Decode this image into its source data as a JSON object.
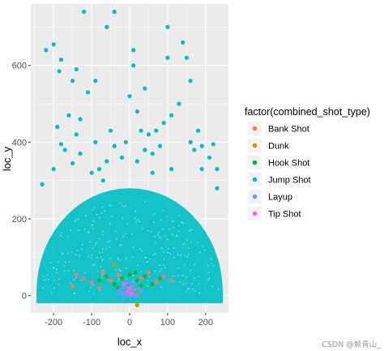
{
  "chart_data": {
    "type": "scatter",
    "title": "",
    "xlabel": "loc_x",
    "ylabel": "loc_y",
    "xlim": [
      -260,
      260
    ],
    "ylim": [
      -45,
      760
    ],
    "x_ticks": [
      -200,
      -100,
      0,
      100,
      200
    ],
    "y_ticks": [
      0,
      200,
      400,
      600
    ],
    "x_tick_labels": [
      "-200",
      "-100",
      "0",
      "100",
      "200"
    ],
    "y_tick_labels": [
      "0",
      "200",
      "400",
      "600"
    ],
    "grid": true,
    "legend_position": "right",
    "legend_title": "factor(combined_shot_type)",
    "legend": [
      {
        "name": "Bank Shot",
        "color": "#F8766D"
      },
      {
        "name": "Dunk",
        "color": "#B79F00"
      },
      {
        "name": "Hook Shot",
        "color": "#00BA38"
      },
      {
        "name": "Jump Shot",
        "color": "#00BFC4"
      },
      {
        "name": "Layup",
        "color": "#619CFF"
      },
      {
        "name": "Tip Shot",
        "color": "#F564E3"
      }
    ],
    "series": [
      {
        "name": "Jump Shot",
        "color": "#00BFC4",
        "points": [
          [
            -40,
            740
          ],
          [
            -60,
            700
          ],
          [
            -120,
            740
          ],
          [
            -200,
            655
          ],
          [
            -220,
            640
          ],
          [
            -180,
            615
          ],
          [
            -185,
            585
          ],
          [
            -140,
            590
          ],
          [
            -110,
            530
          ],
          [
            -90,
            560
          ],
          [
            -150,
            560
          ],
          [
            -160,
            470
          ],
          [
            -130,
            460
          ],
          [
            -140,
            420
          ],
          [
            -190,
            440
          ],
          [
            -180,
            395
          ],
          [
            -170,
            380
          ],
          [
            -130,
            370
          ],
          [
            -200,
            330
          ],
          [
            -150,
            345
          ],
          [
            -100,
            320
          ],
          [
            -80,
            330
          ],
          [
            -60,
            350
          ],
          [
            -40,
            390
          ],
          [
            -20,
            360
          ],
          [
            10,
            640
          ],
          [
            10,
            600
          ],
          [
            0,
            520
          ],
          [
            20,
            480
          ],
          [
            40,
            540
          ],
          [
            30,
            430
          ],
          [
            50,
            420
          ],
          [
            40,
            380
          ],
          [
            20,
            350
          ],
          [
            60,
            370
          ],
          [
            80,
            390
          ],
          [
            -70,
            300
          ],
          [
            100,
            700
          ],
          [
            100,
            620
          ],
          [
            140,
            660
          ],
          [
            150,
            620
          ],
          [
            160,
            560
          ],
          [
            130,
            500
          ],
          [
            110,
            470
          ],
          [
            90,
            450
          ],
          [
            70,
            430
          ],
          [
            160,
            400
          ],
          [
            180,
            430
          ],
          [
            190,
            390
          ],
          [
            170,
            380
          ],
          [
            220,
            395
          ],
          [
            210,
            360
          ],
          [
            230,
            330
          ],
          [
            190,
            330
          ],
          [
            110,
            330
          ],
          [
            -10,
            400
          ],
          [
            -50,
            430
          ],
          [
            -90,
            400
          ],
          [
            60,
            320
          ],
          [
            -230,
            290
          ],
          [
            230,
            280
          ]
        ]
      },
      {
        "name": "Bank Shot",
        "color": "#F8766D",
        "points": [
          [
            -140,
            55
          ],
          [
            -120,
            45
          ],
          [
            -100,
            35
          ],
          [
            -70,
            60
          ],
          [
            -50,
            40
          ],
          [
            -30,
            55
          ],
          [
            -80,
            20
          ],
          [
            30,
            45
          ],
          [
            50,
            60
          ],
          [
            70,
            35
          ],
          [
            90,
            50
          ],
          [
            110,
            40
          ],
          [
            -150,
            25
          ]
        ]
      },
      {
        "name": "Dunk",
        "color": "#B79F00",
        "points": [
          [
            20,
            -25
          ],
          [
            -40,
            80
          ],
          [
            10,
            15
          ],
          [
            -10,
            10
          ],
          [
            25,
            5
          ]
        ]
      },
      {
        "name": "Hook Shot",
        "color": "#00BA38",
        "points": [
          [
            -60,
            50
          ],
          [
            -40,
            30
          ],
          [
            -20,
            45
          ],
          [
            0,
            55
          ],
          [
            20,
            40
          ],
          [
            40,
            50
          ],
          [
            60,
            30
          ],
          [
            80,
            45
          ],
          [
            -80,
            40
          ],
          [
            0,
            25
          ],
          [
            -30,
            20
          ],
          [
            30,
            25
          ],
          [
            15,
            60
          ]
        ]
      },
      {
        "name": "Layup",
        "color": "#619CFF",
        "points": [
          [
            -20,
            5
          ],
          [
            -10,
            10
          ],
          [
            0,
            0
          ],
          [
            10,
            8
          ],
          [
            20,
            3
          ],
          [
            -5,
            20
          ],
          [
            5,
            25
          ],
          [
            -25,
            15
          ],
          [
            25,
            18
          ],
          [
            0,
            35
          ],
          [
            -15,
            -5
          ],
          [
            15,
            -3
          ],
          [
            -8,
            2
          ],
          [
            8,
            12
          ],
          [
            -30,
            8
          ],
          [
            30,
            10
          ],
          [
            0,
            15
          ],
          [
            -12,
            28
          ],
          [
            12,
            30
          ]
        ]
      },
      {
        "name": "Tip Shot",
        "color": "#F564E3",
        "points": [
          [
            -5,
            10
          ],
          [
            5,
            5
          ],
          [
            0,
            20
          ],
          [
            -15,
            30
          ]
        ]
      }
    ]
  },
  "watermark": "CSDN @赖青山_"
}
